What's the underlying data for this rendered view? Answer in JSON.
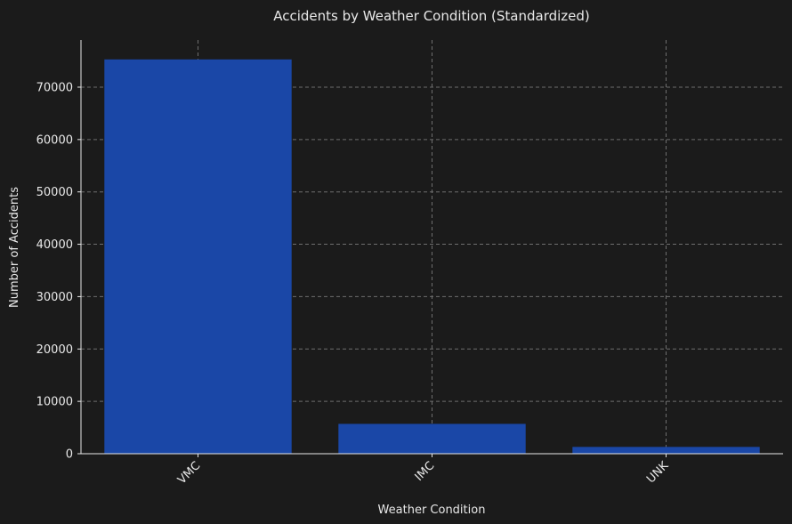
{
  "chart_data": {
    "type": "bar",
    "title": "Accidents by Weather Condition (Standardized)",
    "xlabel": "Weather Condition",
    "ylabel": "Number of Accidents",
    "categories": [
      "VMC",
      "IMC",
      "UNK"
    ],
    "values": [
      75300,
      5700,
      1300
    ],
    "ylim": [
      0,
      79000
    ],
    "yticks": [
      0,
      10000,
      20000,
      30000,
      40000,
      50000,
      60000,
      70000
    ],
    "grid": true,
    "legend": "none",
    "bar_color": "#1a47a7",
    "background_color": "#1b1b1b"
  }
}
